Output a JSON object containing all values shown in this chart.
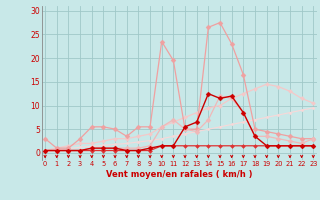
{
  "x": [
    0,
    1,
    2,
    3,
    4,
    5,
    6,
    7,
    8,
    9,
    10,
    11,
    12,
    13,
    14,
    15,
    16,
    17,
    18,
    19,
    20,
    21,
    22,
    23
  ],
  "series": [
    {
      "name": "light_pink_peak",
      "color": "#f0a0a0",
      "linewidth": 0.9,
      "markersize": 2.5,
      "y": [
        3.0,
        1.0,
        1.0,
        3.0,
        5.5,
        5.5,
        5.0,
        3.5,
        5.5,
        5.5,
        23.5,
        19.5,
        5.0,
        5.0,
        26.5,
        27.5,
        23.0,
        16.5,
        5.0,
        4.5,
        4.0,
        3.5,
        3.0,
        3.0
      ]
    },
    {
      "name": "medium_pink",
      "color": "#f0b8b8",
      "linewidth": 0.9,
      "markersize": 2.5,
      "y": [
        0.5,
        0.5,
        0.5,
        0.5,
        1.0,
        1.0,
        1.0,
        1.0,
        1.0,
        1.5,
        5.5,
        7.0,
        5.0,
        4.5,
        7.0,
        12.0,
        11.5,
        8.5,
        3.5,
        3.5,
        3.0,
        2.5,
        2.0,
        3.0
      ]
    },
    {
      "name": "dark_red_spiky",
      "color": "#cc0000",
      "linewidth": 1.0,
      "markersize": 2.5,
      "y": [
        0.5,
        0.5,
        0.5,
        0.5,
        1.0,
        1.0,
        1.0,
        0.5,
        0.5,
        1.0,
        1.5,
        1.5,
        5.5,
        6.5,
        12.5,
        11.5,
        12.0,
        8.5,
        3.5,
        1.5,
        1.5,
        1.5,
        1.5,
        1.5
      ]
    },
    {
      "name": "red_flat",
      "color": "#dd3333",
      "linewidth": 0.9,
      "markersize": 2.0,
      "y": [
        0.5,
        0.5,
        0.5,
        0.5,
        0.5,
        0.5,
        0.5,
        0.5,
        0.5,
        0.5,
        1.5,
        1.5,
        1.5,
        1.5,
        1.5,
        1.5,
        1.5,
        1.5,
        1.5,
        1.5,
        1.5,
        1.5,
        1.5,
        1.5
      ]
    },
    {
      "name": "salmon_diag_1",
      "color": "#f5c8c8",
      "linewidth": 0.9,
      "markersize": 2.0,
      "y": [
        0.5,
        1.0,
        1.5,
        2.0,
        2.0,
        2.5,
        3.0,
        3.0,
        3.5,
        4.0,
        5.5,
        6.5,
        7.5,
        8.5,
        9.5,
        10.0,
        11.5,
        12.5,
        13.5,
        14.5,
        14.0,
        13.0,
        11.5,
        10.5
      ]
    },
    {
      "name": "salmon_diag_2",
      "color": "#f8d8d8",
      "linewidth": 0.8,
      "markersize": 1.5,
      "y": [
        0.3,
        0.6,
        0.9,
        1.2,
        1.4,
        1.6,
        1.8,
        2.0,
        2.3,
        2.6,
        3.0,
        3.5,
        4.0,
        4.5,
        5.0,
        5.5,
        6.0,
        6.5,
        7.0,
        7.5,
        8.0,
        8.5,
        9.0,
        9.5
      ]
    }
  ],
  "xlim": [
    -0.3,
    23.3
  ],
  "ylim": [
    -1.5,
    31
  ],
  "yticks": [
    0,
    5,
    10,
    15,
    20,
    25,
    30
  ],
  "xlabel": "Vent moyen/en rafales ( km/h )",
  "bg_color": "#c8e8e8",
  "grid_color": "#a0c8c8",
  "text_color": "#cc0000",
  "arrow_color": "#cc0000",
  "spine_color": "#888888"
}
